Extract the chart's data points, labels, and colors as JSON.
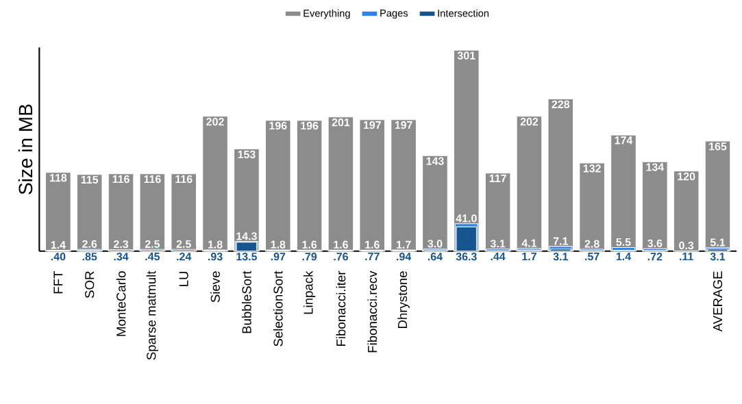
{
  "chart_data": {
    "type": "bar",
    "ylabel": "Size in MB",
    "categories": [
      "FFT",
      "SOR",
      "MonteCarlo",
      "Sparse matmult",
      "LU",
      "Sieve",
      "BubbleSort",
      "SelectionSort",
      "Linpack",
      "Fibonacci.iter",
      "Fibonacci.recv",
      "Dhrystone",
      null,
      null,
      null,
      null,
      null,
      null,
      null,
      null,
      null,
      "AVERAGE"
    ],
    "series": [
      {
        "name": "Everything",
        "color": "#8c8c8c",
        "values": [
          118,
          115,
          116,
          116,
          116,
          202,
          153,
          196,
          196,
          201,
          197,
          197,
          143,
          301,
          117,
          202,
          228,
          132,
          174,
          134,
          120,
          165
        ],
        "value_labels": [
          "118",
          "115",
          "116",
          "116",
          "116",
          "202",
          "153",
          "196",
          "196",
          "201",
          "197",
          "197",
          "143",
          "301",
          "117",
          "202",
          "228",
          "132",
          "174",
          "134",
          "120",
          "165"
        ]
      },
      {
        "name": "Pages",
        "color": "#3381ea",
        "values": [
          1.4,
          2.6,
          2.3,
          2.5,
          2.5,
          1.8,
          14.3,
          1.8,
          1.6,
          1.6,
          1.6,
          1.7,
          3.0,
          41.0,
          3.1,
          4.1,
          7.1,
          2.8,
          5.5,
          3.6,
          0.3,
          5.1
        ],
        "value_labels": [
          "1.4",
          "2.6",
          "2.3",
          "2.5",
          "2.5",
          "1.8",
          "14.3",
          "1.8",
          "1.6",
          "1.6",
          "1.6",
          "1.7",
          "3.0",
          "41.0",
          "3.1",
          "4.1",
          "7.1",
          "2.8",
          "5.5",
          "3.6",
          "0.3",
          "5.1"
        ]
      },
      {
        "name": "Intersection",
        "color": "#17558f",
        "values": [
          0.4,
          0.85,
          0.34,
          0.45,
          0.24,
          0.93,
          13.5,
          0.97,
          0.79,
          0.76,
          0.77,
          0.94,
          0.64,
          36.3,
          0.44,
          1.7,
          3.1,
          0.57,
          1.4,
          0.72,
          0.11,
          3.1
        ],
        "value_labels": [
          ".40",
          ".85",
          ".34",
          ".45",
          ".24",
          ".93",
          "13.5",
          ".97",
          ".79",
          ".76",
          ".77",
          ".94",
          ".64",
          "36.3",
          ".44",
          "1.7",
          "3.1",
          ".57",
          "1.4",
          ".72",
          ".11",
          "3.1"
        ]
      }
    ],
    "ylim": [
      0,
      305
    ],
    "tick_labels": "x",
    "legend": "top",
    "grid": false
  }
}
